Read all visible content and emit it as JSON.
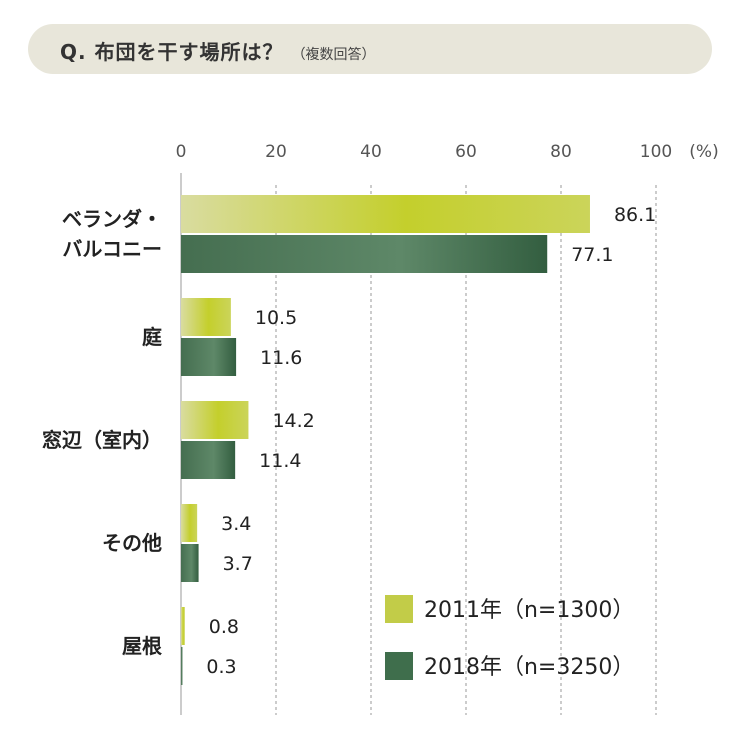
{
  "header": {
    "title": "Q. 布団を干す場所は？",
    "note": "（複数回答）"
  },
  "chart_data": {
    "type": "bar",
    "orientation": "horizontal",
    "title": "Q. 布団を干す場所は？",
    "subtitle": "（複数回答）",
    "unit": "(%)",
    "xlim": [
      0,
      100
    ],
    "ticks": [
      "0",
      "20",
      "40",
      "60",
      "80",
      "100"
    ],
    "grid": true,
    "legend_position": "bottom-right",
    "categories": [
      [
        "ベランダ・",
        "バルコニー"
      ],
      [
        "庭"
      ],
      [
        "窓辺（室内）"
      ],
      [
        "その他"
      ],
      [
        "屋根"
      ]
    ],
    "series": [
      {
        "name": "2011年（n=1300）",
        "color": "#c2cc48",
        "values": [
          86.1,
          10.5,
          14.2,
          3.4,
          0.8
        ],
        "labels": [
          "86.1",
          "10.5",
          "14.2",
          "3.4",
          "0.8"
        ]
      },
      {
        "name": "2018年（n=3250）",
        "color": "#3f6e4c",
        "values": [
          77.1,
          11.6,
          11.4,
          3.7,
          0.3
        ],
        "labels": [
          "77.1",
          "11.6",
          "11.4",
          "3.7",
          "0.3"
        ]
      }
    ]
  }
}
